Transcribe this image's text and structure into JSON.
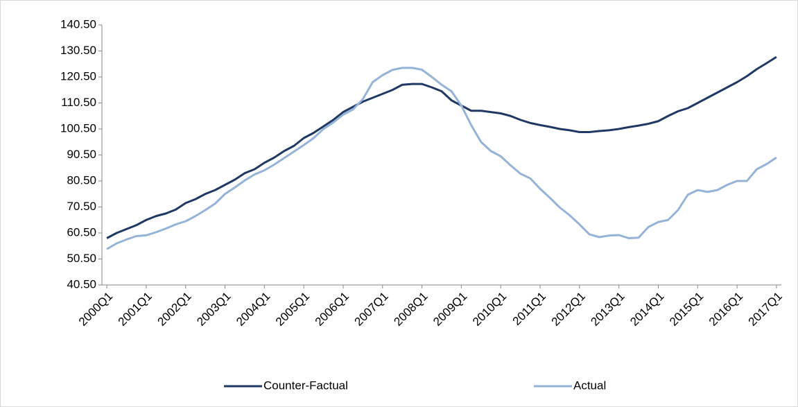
{
  "chart_data": {
    "type": "line",
    "categories": [
      "2000Q1",
      null,
      null,
      null,
      "2001Q1",
      null,
      null,
      null,
      "2002Q1",
      null,
      null,
      null,
      "2003Q1",
      null,
      null,
      null,
      "2004Q1",
      null,
      null,
      null,
      "2005Q1",
      null,
      null,
      null,
      "2006Q1",
      null,
      null,
      null,
      "2007Q1",
      null,
      null,
      null,
      "2008Q1",
      null,
      null,
      null,
      "2009Q1",
      null,
      null,
      null,
      "2010Q1",
      null,
      null,
      null,
      "2011Q1",
      null,
      null,
      null,
      "2012Q1",
      null,
      null,
      null,
      "2013Q1",
      null,
      null,
      null,
      "2014Q1",
      null,
      null,
      null,
      "2015Q1",
      null,
      null,
      null,
      "2016Q1",
      null,
      null,
      null,
      "2017Q1"
    ],
    "series": [
      {
        "name": "Counter-Factual",
        "color": "#1f3864",
        "values": [
          58.5,
          60.5,
          62,
          63.5,
          65.5,
          67,
          68,
          69.5,
          72,
          73.5,
          75.5,
          77,
          79,
          81,
          83.5,
          85,
          87.5,
          89.5,
          92,
          94,
          97,
          99,
          101.5,
          104,
          107,
          109,
          111,
          112.5,
          114,
          115.5,
          117.5,
          117.8,
          117.8,
          116.5,
          115,
          111.5,
          109.5,
          107.5,
          107.5,
          107,
          106.5,
          105.5,
          104,
          102.8,
          102,
          101.3,
          100.5,
          100,
          99.3,
          99.3,
          99.7,
          100,
          100.5,
          101.2,
          101.8,
          102.5,
          103.5,
          105.5,
          107.3,
          108.5,
          110.5,
          112.5,
          114.5,
          116.5,
          118.5,
          120.8,
          123.5,
          125.8,
          128.2
        ]
      },
      {
        "name": "Actual",
        "color": "#95b3d7",
        "values": [
          54.3,
          56.5,
          58,
          59.3,
          59.6,
          60.8,
          62.2,
          63.8,
          65,
          67,
          69.3,
          71.8,
          75.5,
          78,
          80.7,
          83,
          84.6,
          86.8,
          89.3,
          91.8,
          94.3,
          97,
          100.5,
          103,
          106,
          108,
          112,
          118.5,
          121.2,
          123.2,
          124,
          124,
          123.3,
          120.5,
          117.5,
          115,
          109.5,
          102,
          95.5,
          92,
          90,
          86.5,
          83.3,
          81.5,
          77.5,
          74,
          70.3,
          67.3,
          63.8,
          60,
          58.9,
          59.5,
          59.7,
          58.5,
          58.7,
          62.8,
          64.7,
          65.5,
          69.3,
          75.2,
          77,
          76.3,
          77,
          79,
          80.5,
          80.5,
          85,
          87,
          89.5
        ]
      }
    ],
    "ylim": [
      40.5,
      140.5
    ],
    "yticks": [
      {
        "value": 40.5,
        "label": "40.50"
      },
      {
        "value": 50.5,
        "label": "50.50"
      },
      {
        "value": 60.5,
        "label": "60.50"
      },
      {
        "value": 70.5,
        "label": "70.50"
      },
      {
        "value": 80.5,
        "label": "80.50"
      },
      {
        "value": 90.5,
        "label": "90.50"
      },
      {
        "value": 100.5,
        "label": "100.50"
      },
      {
        "value": 110.5,
        "label": "110.50"
      },
      {
        "value": 120.5,
        "label": "120.50"
      },
      {
        "value": 130.5,
        "label": "130.50"
      },
      {
        "value": 140.5,
        "label": "140.50"
      }
    ],
    "grid": false,
    "legend": "bottom"
  }
}
